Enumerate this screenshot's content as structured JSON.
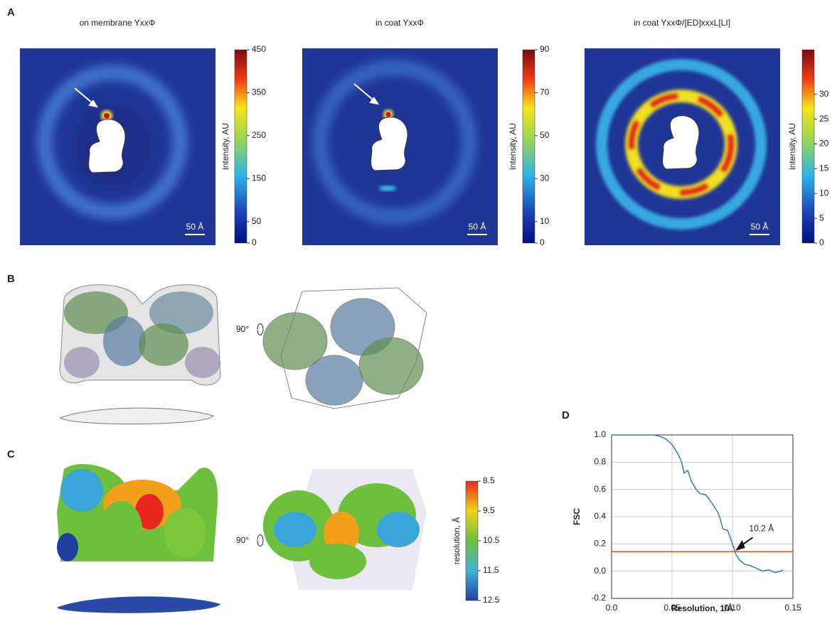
{
  "panel_labels": [
    "A",
    "B",
    "C",
    "D"
  ],
  "panel_a": {
    "maps": [
      {
        "title": "on membrane YxxΦ",
        "colorbar_label": "intensity, AU",
        "clim": [
          0,
          450
        ],
        "cticks": [
          0,
          50,
          150,
          250,
          350,
          450
        ],
        "scale_bar": "50 Å"
      },
      {
        "title": "in coat YxxΦ",
        "colorbar_label": "intensity, AU",
        "clim": [
          0,
          90
        ],
        "cticks": [
          0,
          10,
          30,
          50,
          70,
          90
        ],
        "scale_bar": "50 Å"
      },
      {
        "title": "in coat YxxΦ/[ED]xxxL[LI]",
        "colorbar_label": "intensity, AU",
        "clim": [
          0,
          39
        ],
        "cticks": [
          0,
          5,
          10,
          15,
          20,
          25,
          30
        ],
        "scale_bar": "50 Å"
      }
    ]
  },
  "panel_b": {
    "rotation": "90°"
  },
  "panel_c": {
    "rotation": "90°",
    "colorbar_label": "resolution, Å",
    "clim": [
      12.5,
      8.5
    ],
    "cticks": [
      8.5,
      9.5,
      10.5,
      11.5,
      12.5
    ]
  },
  "chart_data": {
    "type": "line",
    "x_label": "Resolution, 1/Å",
    "y_label": "FSC",
    "xlim": [
      0,
      0.15
    ],
    "ylim": [
      -0.2,
      1.0
    ],
    "xticks": [
      {
        "value": 0,
        "label": "0.0"
      },
      0.05,
      {
        "value": 0.1,
        "label": "0.10"
      },
      0.15
    ],
    "yticks": [
      -0.2,
      {
        "value": 0,
        "label": "0.0"
      },
      0.2,
      0.4,
      0.6,
      0.8,
      {
        "value": 1,
        "label": "1.0"
      }
    ],
    "grid": true,
    "x": [
      0,
      0.01,
      0.02,
      0.03,
      0.035,
      0.04,
      0.045,
      0.05,
      0.055,
      0.058,
      0.06,
      0.063,
      0.066,
      0.07,
      0.073,
      0.078,
      0.083,
      0.088,
      0.09,
      0.092,
      0.096,
      0.1,
      0.103,
      0.106,
      0.11,
      0.115,
      0.12,
      0.125,
      0.13,
      0.135,
      0.14,
      0.142
    ],
    "series": [
      {
        "name": "FSC",
        "color": "#2f7bbf",
        "values": [
          1.0,
          1.0,
          1.0,
          1.0,
          1.0,
          0.99,
          0.97,
          0.93,
          0.86,
          0.8,
          0.72,
          0.74,
          0.66,
          0.6,
          0.57,
          0.56,
          0.5,
          0.43,
          0.38,
          0.31,
          0.3,
          0.2,
          0.12,
          0.08,
          0.05,
          0.04,
          0.02,
          0.0,
          0.01,
          -0.01,
          0.0,
          0.01
        ]
      }
    ],
    "threshold": {
      "value": 0.143,
      "color": "#e0502a"
    },
    "annotation": {
      "text": "10.2 Å",
      "x": 0.102,
      "y": 0.143
    }
  }
}
